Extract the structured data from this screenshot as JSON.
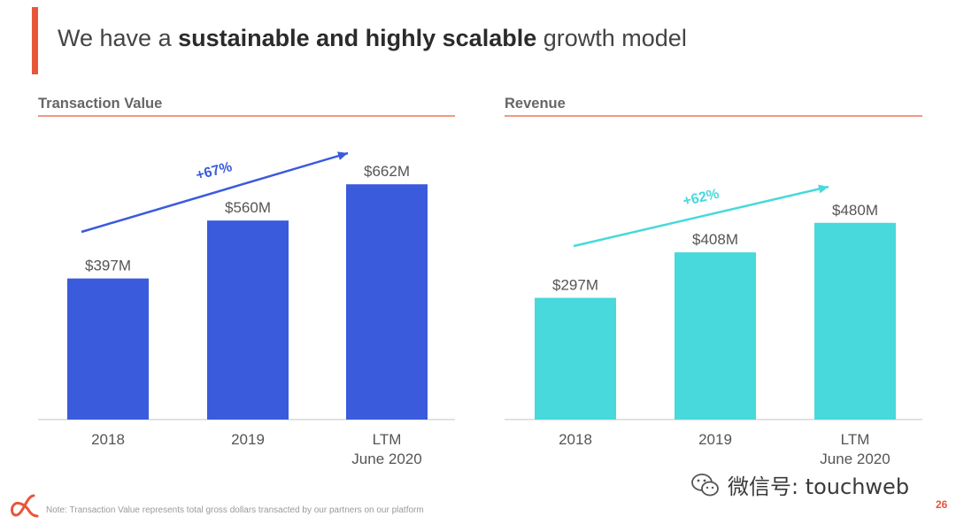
{
  "header": {
    "title_prefix": "We have a ",
    "title_bold": "sustainable and highly scalable",
    "title_suffix": " growth model"
  },
  "colors": {
    "accent": "#e8563a",
    "rule": "#ef9a82",
    "transaction_bar": "#3a5bdc",
    "revenue_bar": "#47d9dc",
    "growth_arrow_1": "#3a5bdc",
    "growth_arrow_2": "#47d9dc"
  },
  "chart_data": [
    {
      "type": "bar",
      "title": "Transaction Value",
      "categories": [
        "2018",
        "2019",
        "LTM\nJune 2020"
      ],
      "values": [
        397,
        560,
        662
      ],
      "value_labels": [
        "$397M",
        "$560M",
        "$662M"
      ],
      "growth_label": "+67%",
      "ylim": [
        0,
        750
      ]
    },
    {
      "type": "bar",
      "title": "Revenue",
      "categories": [
        "2018",
        "2019",
        "LTM\nJune 2020"
      ],
      "values": [
        297,
        408,
        480
      ],
      "value_labels": [
        "$297M",
        "$408M",
        "$480M"
      ],
      "growth_label": "+62%",
      "ylim": [
        0,
        600
      ]
    }
  ],
  "footer": {
    "note": "Note: Transaction Value represents total gross dollars transacted by our partners on our platform",
    "page_number": "26",
    "watermark": "微信号: touchweb",
    "logo_icon": "alpha-logo-icon",
    "watermark_icon": "wechat-icon"
  }
}
